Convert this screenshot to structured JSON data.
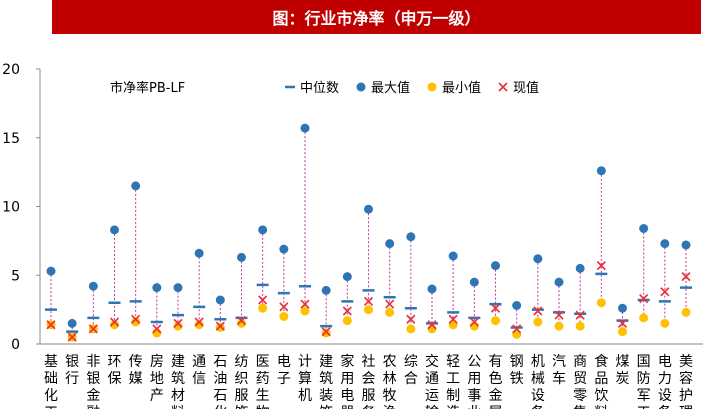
{
  "title": "图：行业市净率（申万一级）",
  "chart_data": {
    "type": "scatter",
    "ylabel": "市净率PB-LF",
    "ylim": [
      0,
      20
    ],
    "yticks": [
      0,
      5,
      10,
      15,
      20
    ],
    "legend_position": "top",
    "categories": [
      "基础化工",
      "银行",
      "非银金融",
      "环保",
      "传媒",
      "房地产",
      "建筑材料",
      "通信",
      "石油石化",
      "纺织服饰",
      "医药生物",
      "电子",
      "计算机",
      "建筑装饰",
      "家用电器",
      "社会服务",
      "农林牧渔",
      "综合",
      "交通运输",
      "轻工制造",
      "公用事业",
      "有色金属",
      "钢铁",
      "机械设备",
      "汽车",
      "商贸零售",
      "食品饮料",
      "煤炭",
      "国防军工",
      "电力设备",
      "美容护理"
    ],
    "series": [
      {
        "name": "中位数",
        "color": "#2e75b6",
        "marker": "dash",
        "values": [
          2.5,
          0.9,
          1.9,
          3.0,
          3.1,
          1.6,
          2.1,
          2.7,
          1.8,
          1.9,
          4.3,
          3.7,
          4.2,
          1.3,
          3.1,
          3.9,
          3.4,
          2.6,
          1.5,
          2.3,
          1.9,
          2.9,
          1.2,
          2.5,
          2.3,
          2.2,
          5.1,
          1.7,
          3.2,
          3.1,
          4.1
        ]
      },
      {
        "name": "最大值",
        "color": "#2e75b6",
        "marker": "circle",
        "values": [
          5.3,
          1.5,
          4.2,
          8.3,
          11.5,
          4.1,
          4.1,
          6.6,
          3.2,
          6.3,
          8.3,
          6.9,
          15.7,
          3.9,
          4.9,
          9.8,
          7.3,
          7.8,
          4.0,
          6.4,
          4.5,
          5.7,
          2.8,
          6.2,
          4.5,
          5.5,
          12.6,
          2.6,
          8.4,
          7.3,
          7.2
        ]
      },
      {
        "name": "最小值",
        "color": "#ffc000",
        "marker": "circle",
        "values": [
          1.4,
          0.5,
          1.1,
          1.4,
          1.6,
          0.8,
          1.3,
          1.4,
          1.2,
          1.5,
          2.6,
          2.0,
          2.4,
          0.8,
          1.7,
          2.5,
          2.3,
          1.1,
          1.1,
          1.4,
          1.3,
          1.7,
          0.7,
          1.6,
          1.3,
          1.3,
          3.0,
          0.9,
          1.9,
          1.5,
          2.3
        ]
      },
      {
        "name": "现值",
        "color": "#e8313a",
        "marker": "x",
        "values": [
          1.4,
          0.5,
          1.1,
          1.6,
          1.8,
          1.1,
          1.5,
          1.6,
          1.3,
          1.7,
          3.2,
          2.7,
          2.9,
          0.9,
          2.4,
          3.1,
          2.9,
          1.8,
          1.4,
          1.8,
          1.6,
          2.6,
          1.1,
          2.4,
          2.1,
          2.1,
          5.7,
          1.5,
          3.3,
          3.8,
          4.9
        ]
      }
    ]
  }
}
